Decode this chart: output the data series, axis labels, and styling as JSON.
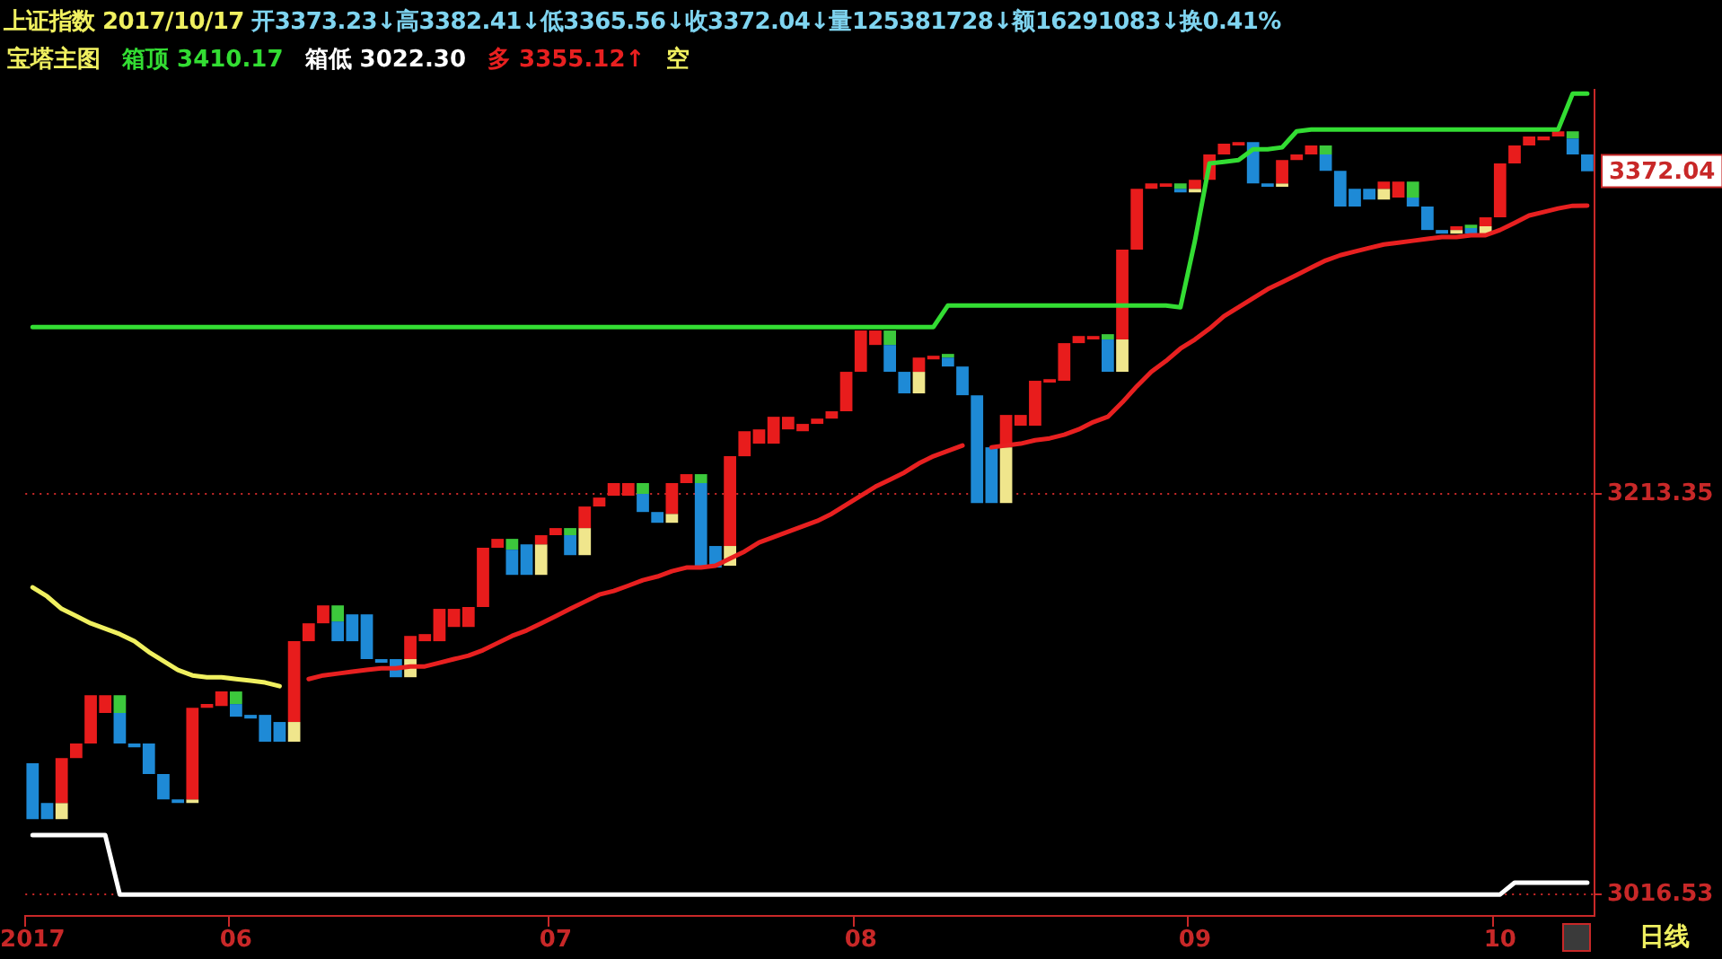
{
  "chart_data": {
    "type": "bar",
    "title": "上证指数 2017/10/17 开3373.23↓高3382.41↓低3365.56↓收3372.04↓量125381728↓额16291083↓换0.41%",
    "legend_title": "宝塔主图",
    "legend": "top left",
    "grid": "y",
    "ylim": [
      3006,
      3412
    ],
    "yticks": [
      3016.53,
      3213.35,
      {
        "value": 3372.04,
        "label": "3372.04"
      }
    ],
    "annotations": [
      "3410.17",
      "3022.30",
      "3355.12↑",
      "日线"
    ],
    "categories": [
      "2017",
      null,
      null,
      null,
      null,
      null,
      null,
      null,
      null,
      null,
      null,
      null,
      null,
      null,
      "06",
      null,
      null,
      null,
      null,
      null,
      null,
      null,
      null,
      null,
      null,
      null,
      null,
      null,
      null,
      null,
      null,
      null,
      null,
      null,
      null,
      null,
      "07",
      null,
      null,
      null,
      null,
      null,
      null,
      null,
      null,
      null,
      null,
      null,
      null,
      null,
      null,
      null,
      null,
      null,
      null,
      null,
      null,
      "08",
      null,
      null,
      null,
      null,
      null,
      null,
      null,
      null,
      null,
      null,
      null,
      null,
      null,
      null,
      null,
      null,
      null,
      null,
      null,
      null,
      null,
      null,
      "09",
      null,
      null,
      null,
      null,
      null,
      null,
      null,
      null,
      null,
      null,
      null,
      null,
      null,
      null,
      null,
      null,
      null,
      null,
      null,
      null,
      "10",
      null,
      null,
      null,
      null,
      null,
      null
    ],
    "series": [
      {
        "colors": [
          "#1e8ad6",
          "#1e8ad6",
          "#e81c1c",
          "#e81c1c",
          "#e81c1c",
          "#e81c1c",
          "#1e8ad6",
          "#1e8ad6",
          "#1e8ad6",
          "#1e8ad6",
          "#1e8ad6",
          "#e81c1c",
          "#e81c1c",
          "#e81c1c",
          "#1e8ad6",
          "#1e8ad6",
          "#1e8ad6",
          "#1e8ad6",
          "#e81c1c",
          "#e81c1c",
          "#e81c1c",
          "#1e8ad6",
          "#1e8ad6",
          "#1e8ad6",
          "#1e8ad6",
          "#1e8ad6",
          "#e81c1c",
          "#e81c1c",
          "#e81c1c",
          "#e81c1c",
          "#e81c1c",
          "#e81c1c",
          "#e81c1c",
          "#1e8ad6",
          "#1e8ad6",
          "#e81c1c",
          "#e81c1c",
          "#1e8ad6",
          "#e81c1c",
          "#e81c1c",
          "#e81c1c",
          "#e81c1c",
          "#1e8ad6",
          "#1e8ad6",
          "#e81c1c",
          "#e81c1c",
          "#1e8ad6",
          "#1e8ad6",
          "#e81c1c",
          "#e81c1c",
          "#e81c1c",
          "#e81c1c",
          "#e81c1c",
          "#e81c1c",
          "#e81c1c",
          "#e81c1c",
          "#e81c1c",
          "#e81c1c",
          "#e81c1c",
          "#1e8ad6",
          "#1e8ad6",
          "#e81c1c",
          "#e81c1c",
          "#1e8ad6",
          "#1e8ad6",
          "#1e8ad6",
          "#1e8ad6",
          "#e81c1c",
          "#e81c1c",
          "#e81c1c",
          "#e81c1c",
          "#e81c1c",
          "#e81c1c",
          "#e81c1c",
          "#1e8ad6",
          "#e81c1c",
          "#e81c1c",
          "#e81c1c",
          "#e81c1c",
          "#1e8ad6",
          "#e81c1c",
          "#e81c1c",
          "#e81c1c",
          "#e81c1c",
          "#1e8ad6",
          "#1e8ad6",
          "#e81c1c",
          "#e81c1c",
          "#e81c1c",
          "#1e8ad6",
          "#1e8ad6",
          "#1e8ad6",
          "#1e8ad6",
          "#e81c1c",
          "#e81c1c",
          "#1e8ad6",
          "#1e8ad6",
          "#1e8ad6",
          "#e81c1c",
          "#1e8ad6",
          "#e81c1c",
          "#e81c1c",
          "#e81c1c",
          "#e81c1c",
          "#e81c1c",
          "#e81c1c",
          "#1e8ad6",
          "#1e8ad6"
        ],
        "base": [
          3053.6,
          3053.6,
          3061.5,
          3083.6,
          3090.7,
          3105.7,
          3090.7,
          3088.9,
          3075.7,
          3063.3,
          3061.5,
          3063.3,
          3108.3,
          3109.2,
          3103.9,
          3103.0,
          3091.6,
          3091.6,
          3101.3,
          3141.0,
          3149.8,
          3141.0,
          3141.0,
          3132.2,
          3130.4,
          3123.3,
          3132.2,
          3141.0,
          3141.0,
          3148.0,
          3148.0,
          3157.8,
          3186.9,
          3173.6,
          3173.6,
          3188.6,
          3193.1,
          3183.3,
          3196.6,
          3207.2,
          3212.5,
          3212.5,
          3204.5,
          3199.2,
          3203.6,
          3218.7,
          3177.2,
          3177.2,
          3187.8,
          3231.9,
          3238.1,
          3238.1,
          3245.1,
          3244.2,
          3247.8,
          3250.4,
          3254.0,
          3273.4,
          3286.6,
          3273.4,
          3262.8,
          3273.4,
          3279.5,
          3276.0,
          3261.9,
          3208.9,
          3208.9,
          3236.3,
          3246.9,
          3246.9,
          3268.1,
          3269.0,
          3287.5,
          3289.3,
          3273.4,
          3289.3,
          3333.4,
          3363.4,
          3364.3,
          3361.6,
          3363.4,
          3367.8,
          3380.2,
          3384.6,
          3366.0,
          3364.3,
          3366.0,
          3377.5,
          3380.2,
          3372.2,
          3354.6,
          3354.6,
          3358.1,
          3363.4,
          3359.0,
          3354.6,
          3343.1,
          3341.3,
          3343.1,
          3341.3,
          3344.9,
          3349.3,
          3375.8,
          3384.6,
          3387.2,
          3389.0,
          3380.2,
          3372.0
        ],
        "values": [
          27.4,
          7.9,
          22.1,
          7.1,
          23.8,
          8.8,
          15.0,
          1.8,
          15.0,
          12.4,
          1.8,
          45.0,
          1.8,
          7.1,
          6.2,
          1.8,
          13.2,
          9.7,
          39.7,
          8.8,
          8.8,
          9.7,
          13.2,
          22.0,
          1.8,
          8.9,
          11.4,
          3.5,
          15.9,
          8.9,
          9.8,
          29.1,
          4.4,
          12.4,
          15.0,
          4.5,
          3.5,
          9.8,
          10.6,
          4.4,
          6.2,
          6.2,
          8.9,
          5.3,
          15.1,
          4.4,
          41.5,
          10.6,
          44.1,
          12.3,
          7.0,
          13.2,
          6.2,
          3.6,
          2.6,
          3.6,
          19.4,
          20.3,
          7.1,
          13.2,
          10.6,
          7.0,
          1.8,
          4.4,
          14.1,
          53.0,
          27.4,
          15.9,
          5.3,
          22.1,
          1.7,
          18.5,
          3.5,
          1.7,
          15.9,
          44.1,
          30.0,
          2.6,
          1.7,
          1.8,
          4.4,
          12.4,
          5.3,
          1.7,
          20.3,
          1.7,
          11.5,
          2.7,
          4.4,
          8.0,
          17.6,
          8.8,
          5.3,
          3.5,
          7.9,
          4.4,
          11.5,
          1.8,
          1.8,
          2.7,
          4.4,
          26.5,
          8.8,
          4.4,
          1.8,
          2.6,
          7.9,
          8.2
        ]
      },
      {
        "type": "bar",
        "color": "#f0e68c",
        "base": [
          null,
          null,
          3053.6,
          null,
          null,
          null,
          null,
          null,
          null,
          null,
          null,
          3061.5,
          null,
          null,
          null,
          null,
          null,
          null,
          3091.6,
          null,
          null,
          null,
          null,
          null,
          null,
          null,
          3123.3,
          null,
          null,
          null,
          null,
          null,
          null,
          null,
          null,
          3173.6,
          null,
          null,
          3183.3,
          null,
          null,
          null,
          null,
          null,
          3199.2,
          null,
          null,
          null,
          3178.1,
          null,
          null,
          null,
          null,
          null,
          null,
          null,
          null,
          null,
          null,
          null,
          null,
          3262.8,
          null,
          null,
          null,
          null,
          null,
          3208.9,
          null,
          null,
          null,
          null,
          null,
          null,
          null,
          3273.4,
          null,
          null,
          null,
          null,
          3361.6,
          null,
          null,
          null,
          null,
          null,
          3364.3,
          null,
          null,
          null,
          null,
          null,
          null,
          3358.1,
          null,
          null,
          null,
          null,
          3341.3,
          null,
          3341.3,
          null,
          null,
          null,
          null,
          null,
          null,
          null
        ],
        "values": [
          null,
          null,
          7.9,
          null,
          null,
          null,
          null,
          null,
          null,
          null,
          null,
          1.8,
          null,
          null,
          null,
          null,
          null,
          null,
          9.7,
          null,
          null,
          null,
          null,
          null,
          null,
          null,
          8.9,
          null,
          null,
          null,
          null,
          null,
          null,
          null,
          null,
          15.0,
          null,
          null,
          13.3,
          null,
          null,
          null,
          null,
          null,
          4.4,
          null,
          null,
          null,
          9.7,
          null,
          null,
          null,
          null,
          null,
          null,
          null,
          null,
          null,
          null,
          null,
          null,
          10.6,
          null,
          null,
          null,
          null,
          null,
          27.4,
          null,
          null,
          null,
          null,
          null,
          null,
          null,
          15.9,
          null,
          null,
          null,
          null,
          1.8,
          null,
          null,
          null,
          null,
          null,
          1.7,
          null,
          null,
          null,
          null,
          null,
          null,
          5.3,
          null,
          null,
          null,
          null,
          1.8,
          null,
          3.6,
          null,
          null,
          null,
          null,
          null,
          null,
          null
        ]
      },
      {
        "type": "bar",
        "color": "#3cc83c",
        "base": [
          null,
          null,
          null,
          null,
          null,
          null,
          3105.7,
          null,
          null,
          null,
          null,
          null,
          null,
          null,
          3110.1,
          null,
          null,
          null,
          null,
          null,
          null,
          3150.7,
          null,
          null,
          null,
          null,
          null,
          null,
          null,
          null,
          null,
          null,
          null,
          3186.0,
          null,
          null,
          null,
          3193.1,
          null,
          null,
          null,
          null,
          3213.4,
          null,
          null,
          null,
          3218.7,
          null,
          null,
          null,
          null,
          null,
          null,
          null,
          null,
          null,
          null,
          null,
          null,
          3286.6,
          null,
          null,
          null,
          3280.4,
          null,
          null,
          null,
          null,
          null,
          null,
          null,
          null,
          null,
          null,
          3289.3,
          null,
          null,
          null,
          null,
          3363.4,
          null,
          null,
          null,
          null,
          null,
          null,
          null,
          null,
          null,
          3380.2,
          null,
          null,
          null,
          null,
          null,
          3359.0,
          null,
          null,
          null,
          3344.0,
          null,
          null,
          null,
          null,
          null,
          null,
          3388.1,
          null
        ],
        "values": [
          null,
          null,
          null,
          null,
          null,
          null,
          8.8,
          null,
          null,
          null,
          null,
          null,
          null,
          null,
          6.2,
          null,
          null,
          null,
          null,
          null,
          null,
          7.9,
          null,
          null,
          null,
          null,
          null,
          null,
          null,
          null,
          null,
          null,
          null,
          5.3,
          null,
          null,
          null,
          3.5,
          null,
          null,
          null,
          null,
          5.3,
          null,
          null,
          null,
          4.4,
          null,
          null,
          null,
          null,
          null,
          null,
          null,
          null,
          null,
          null,
          null,
          null,
          7.1,
          null,
          null,
          null,
          1.8,
          null,
          null,
          null,
          null,
          null,
          null,
          null,
          null,
          null,
          null,
          2.6,
          null,
          null,
          null,
          null,
          2.6,
          null,
          null,
          null,
          null,
          null,
          null,
          null,
          null,
          null,
          4.4,
          null,
          null,
          null,
          null,
          null,
          7.9,
          null,
          null,
          null,
          1.7,
          null,
          null,
          null,
          null,
          null,
          null,
          3.5,
          null
        ]
      },
      {
        "type": "line",
        "name": "箱顶",
        "color": "#33dd33",
        "values": [
          3295.4,
          3295.4,
          3295.4,
          3295.4,
          3295.4,
          3295.4,
          3295.4,
          3295.4,
          3295.4,
          3295.4,
          3295.4,
          3295.4,
          3295.4,
          3295.4,
          3295.4,
          3295.4,
          3295.4,
          3295.4,
          3295.4,
          3295.4,
          3295.4,
          3295.4,
          3295.4,
          3295.4,
          3295.4,
          3295.4,
          3295.4,
          3295.4,
          3295.4,
          3295.4,
          3295.4,
          3295.4,
          3295.4,
          3295.4,
          3295.4,
          3295.4,
          3295.4,
          3295.4,
          3295.4,
          3295.4,
          3295.4,
          3295.4,
          3295.4,
          3295.4,
          3295.4,
          3295.4,
          3295.4,
          3295.4,
          3295.4,
          3295.4,
          3295.4,
          3295.4,
          3295.4,
          3295.4,
          3295.4,
          3295.4,
          3295.4,
          3295.4,
          3295.4,
          3295.4,
          3295.4,
          3295.4,
          3295.4,
          3306.0,
          3306.0,
          3306.0,
          3306.0,
          3306.0,
          3306.0,
          3306.0,
          3306.0,
          3306.0,
          3306.0,
          3306.0,
          3306.0,
          3306.0,
          3306.0,
          3306.0,
          3306.0,
          3305.1,
          3337.8,
          3375.8,
          3376.6,
          3377.5,
          3382.8,
          3382.8,
          3383.7,
          3391.6,
          3392.5,
          3392.5,
          3392.5,
          3392.5,
          3392.5,
          3392.5,
          3392.5,
          3392.5,
          3392.5,
          3392.5,
          3392.5,
          3392.5,
          3392.5,
          3392.5,
          3392.5,
          3392.5,
          3392.5,
          3392.5,
          3410.17,
          3410.17
        ]
      },
      {
        "type": "line",
        "name": "箱低",
        "color": "#ffffff",
        "values": [
          3045.7,
          3045.7,
          3045.7,
          3045.7,
          3045.7,
          3045.7,
          3016.53,
          3016.53,
          3016.53,
          3016.53,
          3016.53,
          3016.53,
          3016.53,
          3016.53,
          3016.53,
          3016.53,
          3016.53,
          3016.53,
          3016.53,
          3016.53,
          3016.53,
          3016.53,
          3016.53,
          3016.53,
          3016.53,
          3016.53,
          3016.53,
          3016.53,
          3016.53,
          3016.53,
          3016.53,
          3016.53,
          3016.53,
          3016.53,
          3016.53,
          3016.53,
          3016.53,
          3016.53,
          3016.53,
          3016.53,
          3016.53,
          3016.53,
          3016.53,
          3016.53,
          3016.53,
          3016.53,
          3016.53,
          3016.53,
          3016.53,
          3016.53,
          3016.53,
          3016.53,
          3016.53,
          3016.53,
          3016.53,
          3016.53,
          3016.53,
          3016.53,
          3016.53,
          3016.53,
          3016.53,
          3016.53,
          3016.53,
          3016.53,
          3016.53,
          3016.53,
          3016.53,
          3016.53,
          3016.53,
          3016.53,
          3016.53,
          3016.53,
          3016.53,
          3016.53,
          3016.53,
          3016.53,
          3016.53,
          3016.53,
          3016.53,
          3016.53,
          3016.53,
          3016.53,
          3016.53,
          3016.53,
          3016.53,
          3016.53,
          3016.53,
          3016.53,
          3016.53,
          3016.53,
          3016.53,
          3016.53,
          3016.53,
          3016.53,
          3016.53,
          3016.53,
          3016.53,
          3016.53,
          3016.53,
          3016.53,
          3016.53,
          3016.53,
          3022.3,
          3022.3,
          3022.3,
          3022.3,
          3022.3,
          3022.3
        ]
      },
      {
        "type": "line",
        "name": "多",
        "color": "#e82020",
        "values": [
          null,
          null,
          null,
          null,
          null,
          null,
          null,
          null,
          null,
          null,
          null,
          null,
          null,
          null,
          null,
          null,
          null,
          null,
          null,
          3122.4,
          3124.2,
          3125.1,
          3126.0,
          3126.9,
          3127.7,
          3127.7,
          3128.6,
          3128.6,
          3130.4,
          3132.2,
          3133.9,
          3136.6,
          3140.1,
          3143.6,
          3146.3,
          3149.8,
          3153.3,
          3156.9,
          3160.4,
          3163.9,
          3165.7,
          3168.3,
          3171.0,
          3172.8,
          3175.4,
          3177.2,
          3177.2,
          3178.1,
          3181.6,
          3185.1,
          3189.5,
          3192.2,
          3194.8,
          3197.5,
          3200.1,
          3203.6,
          3208.1,
          3212.5,
          3216.9,
          3220.4,
          3223.9,
          3228.4,
          3231.9,
          3234.5,
          3237.2,
          null,
          3236.3,
          3237.2,
          3238.1,
          3239.8,
          3240.7,
          3242.5,
          3245.1,
          3248.7,
          3251.3,
          3258.4,
          3266.3,
          3273.4,
          3278.7,
          3284.8,
          3289.3,
          3294.6,
          3300.7,
          3305.1,
          3309.6,
          3314.0,
          3317.5,
          3321.0,
          3324.6,
          3328.1,
          3330.7,
          3332.5,
          3334.3,
          3336.0,
          3336.9,
          3337.8,
          3338.7,
          3339.6,
          3339.6,
          3340.5,
          3340.5,
          3343.1,
          3346.6,
          3350.2,
          3351.9,
          3353.7,
          3355.0,
          3355.12
        ]
      },
      {
        "type": "line",
        "name": "空",
        "color": "#f0f060",
        "values": [
          3167.5,
          3163.0,
          3156.9,
          3153.4,
          3149.8,
          3147.2,
          3144.5,
          3141.0,
          3135.7,
          3131.3,
          3126.9,
          3124.2,
          3123.3,
          3123.3,
          3122.4,
          3121.6,
          3120.7,
          3118.9,
          null,
          null,
          null,
          null,
          null,
          null,
          null,
          null,
          null,
          null,
          null,
          null,
          null,
          null,
          null,
          null,
          null,
          null,
          null,
          null,
          null,
          null,
          null,
          null,
          null,
          null,
          null,
          null,
          null,
          null,
          null,
          null,
          null,
          null,
          null,
          null,
          null,
          null,
          null,
          null,
          null,
          null,
          null,
          null,
          null,
          null,
          null,
          null,
          null,
          null,
          null,
          null,
          null,
          null,
          null,
          null,
          null,
          null,
          null,
          null,
          null,
          null,
          null,
          null,
          null,
          null,
          null,
          null,
          null,
          null,
          null,
          null,
          null,
          null,
          null,
          null,
          null,
          null,
          null,
          null,
          null,
          null,
          null,
          null,
          null,
          null,
          null,
          null,
          null,
          null
        ]
      }
    ]
  }
}
